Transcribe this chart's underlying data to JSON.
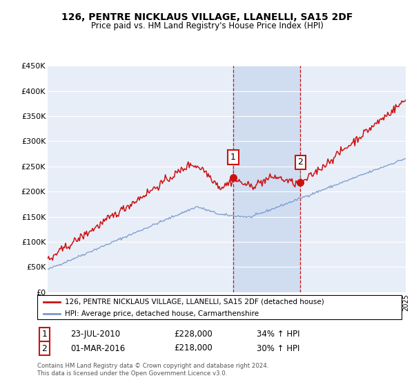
{
  "title": "126, PENTRE NICKLAUS VILLAGE, LLANELLI, SA15 2DF",
  "subtitle": "Price paid vs. HM Land Registry's House Price Index (HPI)",
  "ylim": [
    0,
    450000
  ],
  "yticks": [
    0,
    50000,
    100000,
    150000,
    200000,
    250000,
    300000,
    350000,
    400000,
    450000
  ],
  "ytick_labels": [
    "£0",
    "£50K",
    "£100K",
    "£150K",
    "£200K",
    "£250K",
    "£300K",
    "£350K",
    "£400K",
    "£450K"
  ],
  "background_color": "#ffffff",
  "plot_bg_color": "#e8eef8",
  "grid_color": "#ffffff",
  "legend_label_red": "126, PENTRE NICKLAUS VILLAGE, LLANELLI, SA15 2DF (detached house)",
  "legend_label_blue": "HPI: Average price, detached house, Carmarthenshire",
  "red_color": "#cc1111",
  "blue_color": "#7799cc",
  "highlight_bg": "#d0ddf0",
  "vline_color": "#cc1111",
  "annotation1_date": "23-JUL-2010",
  "annotation1_price": "£228,000",
  "annotation1_hpi": "34% ↑ HPI",
  "annotation2_date": "01-MAR-2016",
  "annotation2_price": "£218,000",
  "annotation2_hpi": "30% ↑ HPI",
  "footer": "Contains HM Land Registry data © Crown copyright and database right 2024.\nThis data is licensed under the Open Government Licence v3.0.",
  "sale1_year": 2010.55,
  "sale1_price": 228000,
  "sale2_year": 2016.17,
  "sale2_price": 218000,
  "xmin": 1995,
  "xmax": 2025
}
